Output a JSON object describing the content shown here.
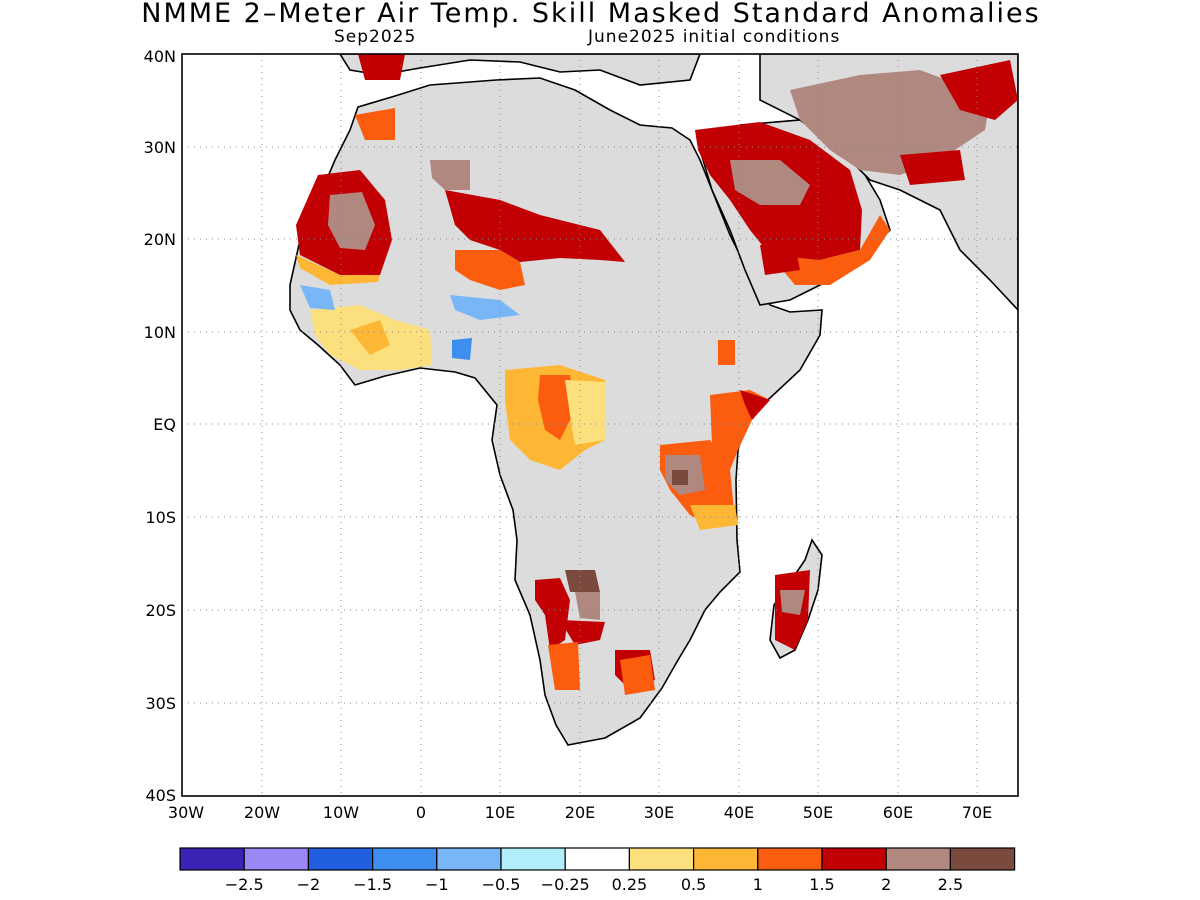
{
  "title": "NMME 2–Meter Air Temp. Skill Masked Standard Anomalies",
  "subtitle_left": "Sep2025",
  "subtitle_right": "June2025 initial conditions",
  "axes": {
    "lat_ticks": [
      "40N",
      "30N",
      "20N",
      "10N",
      "EQ",
      "10S",
      "20S",
      "30S",
      "40S"
    ],
    "lon_ticks": [
      "30W",
      "20W",
      "10W",
      "0",
      "10E",
      "20E",
      "30E",
      "40E",
      "50E",
      "60E",
      "70E"
    ]
  },
  "colorbar": {
    "labels": [
      "−2.5",
      "−2",
      "−1.5",
      "−1",
      "−0.5",
      "−0.25",
      "0.25",
      "0.5",
      "1",
      "1.5",
      "2",
      "2.5"
    ],
    "colors": [
      "#3b24b5",
      "#9b87f5",
      "#1f5fe0",
      "#3d8eef",
      "#78b6f7",
      "#b1eef9",
      "#ffffff",
      "#fde07e",
      "#fdb734",
      "#fb5c0e",
      "#c20004",
      "#b08880",
      "#7a4a3f"
    ]
  },
  "map": {
    "land_color": "#dcdcdc",
    "ocean_color": "#ffffff",
    "grid_style": "dotted"
  }
}
